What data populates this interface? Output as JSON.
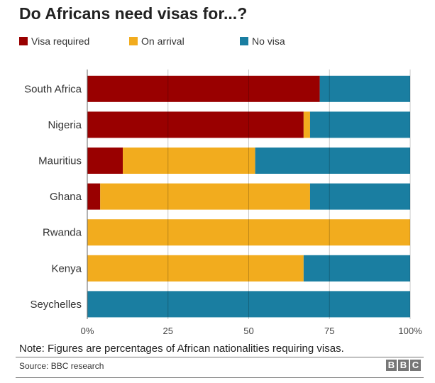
{
  "chart_data": {
    "type": "bar",
    "orientation": "horizontal",
    "stacked": true,
    "title": "Do Africans need visas for...?",
    "categories": [
      "South Africa",
      "Nigeria",
      "Mauritius",
      "Ghana",
      "Rwanda",
      "Kenya",
      "Seychelles"
    ],
    "series": [
      {
        "name": "Visa required",
        "color": "#990000",
        "values": [
          72,
          67,
          11,
          4,
          0,
          0,
          0
        ]
      },
      {
        "name": "On arrival",
        "color": "#f2ac1e",
        "values": [
          0,
          2,
          41,
          65,
          100,
          67,
          0
        ]
      },
      {
        "name": "No visa",
        "color": "#1a7ea1",
        "values": [
          28,
          31,
          48,
          31,
          0,
          33,
          100
        ]
      }
    ],
    "xlim": [
      0,
      100
    ],
    "xticks": [
      0,
      25,
      50,
      75,
      100
    ],
    "xtick_labels": [
      "0%",
      "25",
      "50",
      "75",
      "100%"
    ],
    "grid": true,
    "legend_placement": "top-left",
    "xlabel": "",
    "ylabel": ""
  },
  "note": "Note: Figures are percentages of African nationalities requiring visas.",
  "source": "Source: BBC research",
  "logo": "BBC"
}
